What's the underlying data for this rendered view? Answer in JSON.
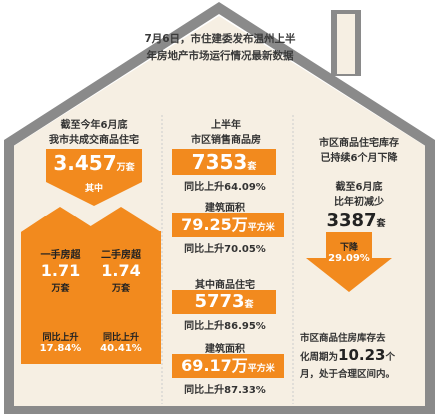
{
  "headline": {
    "line1": "7月6日，市住建委发布温州上半",
    "line2": "年房地产市场运行情况最新数据"
  },
  "left": {
    "title_line1": "截至今年6月底",
    "title_line2": "我市共成交商品住宅",
    "total_value": "3.457",
    "total_unit": "万套",
    "split_label": "其中",
    "first_hand": {
      "label": "一手房超",
      "value": "1.71",
      "unit": "万套",
      "growth_label": "同比上升",
      "growth_value": "17.84%"
    },
    "second_hand": {
      "label": "二手房超",
      "value": "1.74",
      "unit": "万套",
      "growth_label": "同比上升",
      "growth_value": "40.41%"
    }
  },
  "middle": {
    "title_line1": "上半年",
    "title_line2": "市区销售商品房",
    "sales_units_value": "7353",
    "sales_units_unit": "套",
    "sales_units_growth": "同比上升64.09%",
    "area_label": "建筑面积",
    "area_value": "79.25万",
    "area_unit": "平方米",
    "area_growth": "同比上升70.05%",
    "housing_label": "其中商品住宅",
    "housing_value": "5773",
    "housing_unit": "套",
    "housing_growth": "同比上升86.95%",
    "housing_area_label": "建筑面积",
    "housing_area_value": "69.17万",
    "housing_area_unit": "平方米",
    "housing_area_growth": "同比上升87.33%"
  },
  "right": {
    "title_line1": "市区商品住宅库存",
    "title_line2": "已持续6个月下降",
    "sub_line1": "截至6月底",
    "sub_line2": "比年初减少",
    "reduce_value": "3387",
    "reduce_unit": "套",
    "down_label": "下降",
    "down_value": "29.09%",
    "cycle_line1": "市区商品住房库存去",
    "cycle_pre": "化周期为",
    "cycle_value": "10.23",
    "cycle_post": "个",
    "cycle_line3": "月，处于合理区间内。"
  },
  "colors": {
    "accent": "#f28a1e",
    "roof": "#8a8a8a",
    "body": "#f6efe3"
  }
}
